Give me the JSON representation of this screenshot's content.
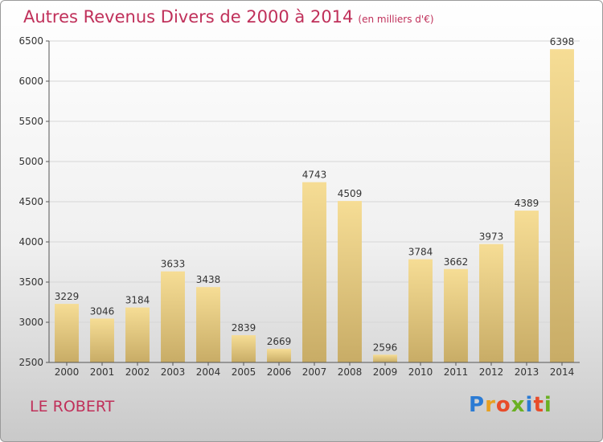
{
  "title": "Autres Revenus Divers de 2000 à 2014",
  "subtitle": "(en milliers d'€)",
  "place": "LE ROBERT",
  "logo": {
    "letters": [
      "P",
      "r",
      "o",
      "x",
      "i",
      "t",
      "i"
    ],
    "colors": [
      "#2b7bd4",
      "#e8a020",
      "#e84c2a",
      "#6ab023",
      "#2b7bd4",
      "#e84c2a",
      "#6ab023"
    ]
  },
  "chart_data": {
    "type": "bar",
    "categories": [
      "2000",
      "2001",
      "2002",
      "2003",
      "2004",
      "2005",
      "2006",
      "2007",
      "2008",
      "2009",
      "2010",
      "2011",
      "2012",
      "2013",
      "2014"
    ],
    "values": [
      3229,
      3046,
      3184,
      3633,
      3438,
      2839,
      2669,
      4743,
      4509,
      2596,
      3784,
      3662,
      3973,
      4389,
      6398
    ],
    "title": "Autres Revenus Divers de 2000 à 2014",
    "subtitle": "(en milliers d'€)",
    "xlabel": "",
    "ylabel": "",
    "ylim": [
      2500,
      6500
    ],
    "yticks": [
      2500,
      3000,
      3500,
      4000,
      4500,
      5000,
      5500,
      6000,
      6500
    ],
    "grid": true,
    "bar_color": "#e9cf85"
  }
}
